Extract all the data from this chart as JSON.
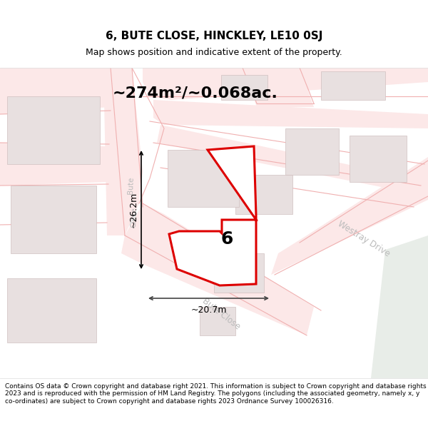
{
  "title": "6, BUTE CLOSE, HINCKLEY, LE10 0SJ",
  "subtitle": "Map shows position and indicative extent of the property.",
  "area_text": "~274m²/~0.068ac.",
  "dim_horiz": "~20.7m",
  "dim_vert": "~26.2m",
  "label_number": "6",
  "footer": "Contains OS data © Crown copyright and database right 2021. This information is subject to Crown copyright and database rights 2023 and is reproduced with the permission of HM Land Registry. The polygons (including the associated geometry, namely x, y co-ordinates) are subject to Crown copyright and database rights 2023 Ordnance Survey 100026316.",
  "bg_color": "#ffffff",
  "map_bg": "#ffffff",
  "road_line_color": "#f0b0b0",
  "road_fill_color": "#fce8e8",
  "building_color": "#e8e0e0",
  "building_edge": "#d0c0c0",
  "property_color": "#dd0000",
  "property_fill": "#ffffff",
  "title_color": "#000000",
  "footer_color": "#000000",
  "road_label_color": "#bbbbbb",
  "annotation_color": "#000000",
  "greenspace_color": "#e8f0e8",
  "title_fontsize": 11,
  "subtitle_fontsize": 9,
  "area_fontsize": 16,
  "label_fontsize": 18,
  "dim_fontsize": 9,
  "road_label_fontsize": 9,
  "footer_fontsize": 6.5
}
